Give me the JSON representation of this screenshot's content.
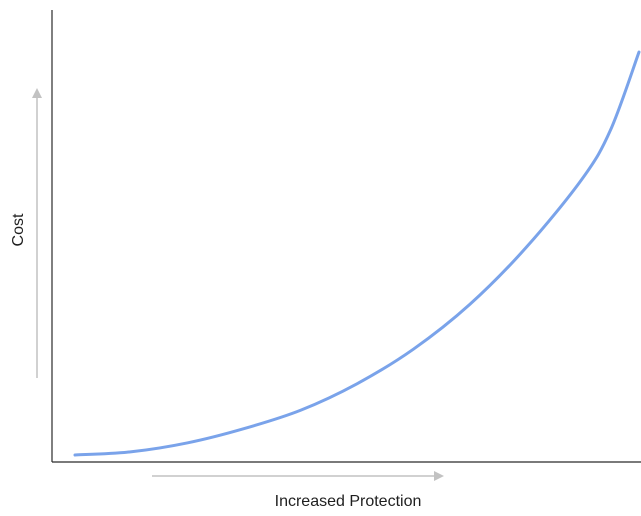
{
  "chart_data": {
    "type": "line",
    "title": "",
    "xlabel": "Increased Protection",
    "ylabel": "Cost",
    "xlim": [
      0,
      1
    ],
    "ylim": [
      0,
      1
    ],
    "grid": false,
    "legend": "none",
    "x_ticks_shown": false,
    "y_ticks_shown": false,
    "series": [
      {
        "x": [
          0,
          0.1,
          0.2,
          0.3,
          0.4,
          0.5,
          0.6,
          0.7,
          0.8,
          0.9,
          0.95,
          1.0
        ],
        "y": [
          0,
          0.008,
          0.03,
          0.065,
          0.11,
          0.175,
          0.26,
          0.37,
          0.51,
          0.68,
          0.8,
          0.99
        ]
      }
    ],
    "colors": {
      "curve": "#7aa3ea",
      "axis": "#2b2b2b",
      "guide_arrow": "#c2c2c2"
    }
  }
}
